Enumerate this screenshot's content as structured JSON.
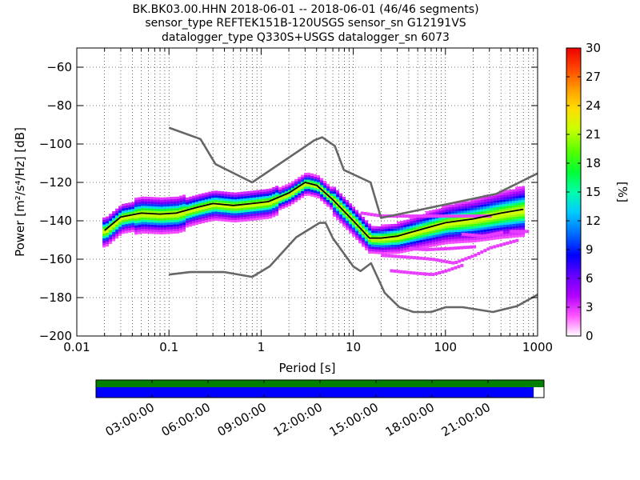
{
  "title_lines": [
    "BK.BK03.00.HHN   2018-06-01 -- 2018-06-01  (46/46 segments)",
    "sensor_type REFTEK151B-120USGS sensor_sn G12191VS",
    "datalogger_type Q330S+USGS datalogger_sn 6073"
  ],
  "chart_data": {
    "type": "heatmap",
    "description_kind": "probabilistic power spectral density",
    "xlabel": "Period [s]",
    "ylabel": "Power [m²/s⁴/Hz] [dB]",
    "xscale": "log",
    "xlim": [
      0.01,
      1000
    ],
    "ylim": [
      -200,
      -50
    ],
    "x_ticks": [
      "0.01",
      "0.1",
      "1",
      "10",
      "100",
      "1000"
    ],
    "y_ticks": [
      "−60",
      "−80",
      "−100",
      "−120",
      "−140",
      "−160",
      "−180",
      "−200"
    ],
    "colorbar": {
      "label": "[%]",
      "range": [
        0,
        30
      ],
      "ticks": [
        "30",
        "27",
        "24",
        "21",
        "18",
        "15",
        "12",
        "9",
        "6",
        "3",
        "0"
      ]
    },
    "series": [
      {
        "name": "",
        "role": "high noise model",
        "color": "#666666",
        "points": [
          [
            0.1,
            -91.5
          ],
          [
            0.22,
            -97.4
          ],
          [
            0.32,
            -110.5
          ],
          [
            0.8,
            -120
          ],
          [
            3.8,
            -98
          ],
          [
            4.6,
            -96.5
          ],
          [
            6.3,
            -101
          ],
          [
            7.9,
            -113.5
          ],
          [
            15.4,
            -120
          ],
          [
            20,
            -138.5
          ],
          [
            354.8,
            -126
          ],
          [
            10000,
            -91.5
          ]
        ]
      },
      {
        "name": "",
        "role": "low noise model",
        "color": "#666666",
        "points": [
          [
            0.1,
            -168
          ],
          [
            0.17,
            -166.7
          ],
          [
            0.4,
            -166.7
          ],
          [
            0.8,
            -169.2
          ],
          [
            1.24,
            -163.7
          ],
          [
            2.4,
            -148.6
          ],
          [
            4.3,
            -141.1
          ],
          [
            5.0,
            -141.1
          ],
          [
            6.0,
            -149
          ],
          [
            10.0,
            -163.8
          ],
          [
            12.0,
            -166.2
          ],
          [
            15.6,
            -162.1
          ],
          [
            21.9,
            -177.5
          ],
          [
            31.6,
            -185
          ],
          [
            45,
            -187.5
          ],
          [
            70,
            -187.5
          ],
          [
            101,
            -185
          ],
          [
            154,
            -185
          ],
          [
            328,
            -187.5
          ],
          [
            600,
            -184.4
          ],
          [
            10000,
            -151.5
          ]
        ]
      },
      {
        "name": "",
        "role": "mode / median PSD",
        "color": "#000000",
        "points": [
          [
            0.02,
            -145
          ],
          [
            0.03,
            -138
          ],
          [
            0.05,
            -136
          ],
          [
            0.08,
            -136.5
          ],
          [
            0.12,
            -136
          ],
          [
            0.2,
            -133
          ],
          [
            0.3,
            -131
          ],
          [
            0.5,
            -132
          ],
          [
            0.8,
            -131
          ],
          [
            1.2,
            -130
          ],
          [
            2.0,
            -125.5
          ],
          [
            3.0,
            -120
          ],
          [
            4.0,
            -121.5
          ],
          [
            6.0,
            -129
          ],
          [
            10,
            -140
          ],
          [
            15,
            -149
          ],
          [
            20,
            -149
          ],
          [
            30,
            -148
          ],
          [
            50,
            -145
          ],
          [
            100,
            -141
          ],
          [
            200,
            -139
          ],
          [
            400,
            -136
          ],
          [
            700,
            -134
          ]
        ]
      }
    ],
    "outlier_branches": [
      {
        "points": [
          [
            12,
            -136
          ],
          [
            20,
            -137.5
          ],
          [
            40,
            -137.5
          ],
          [
            100,
            -137.5
          ],
          [
            300,
            -137.5
          ]
        ]
      },
      {
        "points": [
          [
            40,
            -154.5
          ],
          [
            60,
            -155
          ],
          [
            100,
            -154.5
          ],
          [
            200,
            -153.5
          ]
        ]
      },
      {
        "points": [
          [
            20,
            -158
          ],
          [
            40,
            -159
          ],
          [
            70,
            -160
          ],
          [
            120,
            -162
          ],
          [
            200,
            -158
          ],
          [
            300,
            -154
          ],
          [
            600,
            -150
          ]
        ]
      },
      {
        "points": [
          [
            25,
            -166
          ],
          [
            40,
            -167
          ],
          [
            70,
            -168
          ],
          [
            100,
            -166
          ],
          [
            150,
            -163
          ]
        ]
      },
      {
        "points": [
          [
            150,
            -147
          ],
          [
            250,
            -148
          ],
          [
            400,
            -146
          ]
        ]
      },
      {
        "points": [
          [
            500,
            -145.5
          ],
          [
            800,
            -145.5
          ]
        ]
      }
    ],
    "gaps": [
      {
        "start": "00:00:00",
        "end": "23:00:00",
        "data": true
      }
    ]
  },
  "timeline": {
    "ticks": [
      "03:00:00",
      "06:00:00",
      "09:00:00",
      "12:00:00",
      "15:00:00",
      "18:00:00",
      "21:00:00"
    ],
    "coverage_top_color": "#008000",
    "coverage_bottom_color": "#0000ff",
    "coverage_end_fraction": 0.977
  }
}
